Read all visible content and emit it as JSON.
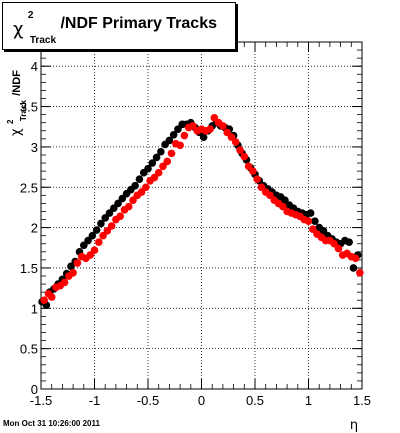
{
  "page": {
    "footer_text": "Mon Oct 31 10:26:00 2011"
  },
  "chart_data": {
    "type": "scatter",
    "title_parts": {
      "chi": "χ",
      "sup": "2",
      "sub": "Track",
      "rest": "/NDF  Primary Tracks"
    },
    "ylabel_parts": {
      "chi": "χ",
      "sup": "2",
      "sub": "Track",
      "rest": "/NDF"
    },
    "xlabel": "η",
    "xlim": [
      -1.5,
      1.5
    ],
    "ylim": [
      0,
      4.3
    ],
    "xticks": [
      -1.5,
      -1,
      -0.5,
      0,
      0.5,
      1,
      1.5
    ],
    "xtick_labels": [
      "-1.5",
      "-1",
      "-0.5",
      "0",
      "0.5",
      "1",
      "1.5"
    ],
    "yticks": [
      0,
      0.5,
      1,
      1.5,
      2,
      2.5,
      3,
      3.5,
      4
    ],
    "ytick_labels": [
      "0",
      "0.5",
      "1",
      "1.5",
      "2",
      "2.5",
      "3",
      "3.5",
      "4"
    ],
    "grid": true,
    "series": [
      {
        "color": "#000000",
        "x": [
          -1.49,
          -1.45,
          -1.42,
          -1.38,
          -1.34,
          -1.3,
          -1.26,
          -1.22,
          -1.18,
          -1.14,
          -1.1,
          -1.06,
          -1.02,
          -0.98,
          -0.94,
          -0.9,
          -0.86,
          -0.82,
          -0.78,
          -0.74,
          -0.7,
          -0.66,
          -0.62,
          -0.58,
          -0.54,
          -0.5,
          -0.46,
          -0.42,
          -0.38,
          -0.34,
          -0.3,
          -0.26,
          -0.22,
          -0.18,
          -0.14,
          -0.1,
          -0.06,
          -0.02,
          0.02,
          0.06,
          0.1,
          0.14,
          0.18,
          0.22,
          0.26,
          0.3,
          0.34,
          0.38,
          0.42,
          0.46,
          0.5,
          0.54,
          0.58,
          0.62,
          0.66,
          0.7,
          0.74,
          0.78,
          0.82,
          0.86,
          0.9,
          0.94,
          0.98,
          1.02,
          1.06,
          1.1,
          1.14,
          1.18,
          1.22,
          1.26,
          1.3,
          1.34,
          1.38,
          1.42,
          1.46
        ],
        "y": [
          1.08,
          1.04,
          1.2,
          1.24,
          1.3,
          1.36,
          1.43,
          1.52,
          1.58,
          1.7,
          1.78,
          1.84,
          1.9,
          1.97,
          2.05,
          2.12,
          2.18,
          2.24,
          2.3,
          2.36,
          2.42,
          2.47,
          2.52,
          2.6,
          2.68,
          2.73,
          2.8,
          2.87,
          2.94,
          3.03,
          3.08,
          3.15,
          3.22,
          3.28,
          3.28,
          3.3,
          3.24,
          3.18,
          3.12,
          3.2,
          3.26,
          3.3,
          3.26,
          3.24,
          3.22,
          3.14,
          3.02,
          2.92,
          2.84,
          2.74,
          2.66,
          2.58,
          2.52,
          2.48,
          2.44,
          2.4,
          2.38,
          2.34,
          2.28,
          2.24,
          2.2,
          2.18,
          2.16,
          2.18,
          2.08,
          2.0,
          1.96,
          1.9,
          1.86,
          1.82,
          1.8,
          1.84,
          1.82,
          1.5,
          1.66
        ]
      },
      {
        "color": "#ff0000",
        "x": [
          -1.47,
          -1.43,
          -1.4,
          -1.36,
          -1.32,
          -1.28,
          -1.24,
          -1.2,
          -1.16,
          -1.12,
          -1.08,
          -1.04,
          -1.0,
          -0.96,
          -0.92,
          -0.88,
          -0.84,
          -0.8,
          -0.76,
          -0.72,
          -0.68,
          -0.64,
          -0.6,
          -0.56,
          -0.52,
          -0.48,
          -0.44,
          -0.4,
          -0.36,
          -0.32,
          -0.28,
          -0.24,
          -0.2,
          -0.16,
          -0.12,
          -0.08,
          -0.04,
          0.0,
          0.04,
          0.08,
          0.12,
          0.16,
          0.2,
          0.24,
          0.28,
          0.32,
          0.36,
          0.4,
          0.44,
          0.48,
          0.52,
          0.56,
          0.6,
          0.64,
          0.68,
          0.72,
          0.76,
          0.8,
          0.84,
          0.88,
          0.92,
          0.96,
          1.0,
          1.04,
          1.08,
          1.12,
          1.16,
          1.2,
          1.24,
          1.28,
          1.32,
          1.36,
          1.4,
          1.44,
          1.48
        ],
        "y": [
          1.1,
          1.18,
          1.14,
          1.26,
          1.28,
          1.32,
          1.4,
          1.44,
          1.56,
          1.64,
          1.62,
          1.66,
          1.72,
          1.82,
          1.9,
          1.96,
          2.02,
          2.1,
          2.14,
          2.22,
          2.26,
          2.34,
          2.4,
          2.44,
          2.5,
          2.58,
          2.62,
          2.68,
          2.76,
          2.82,
          2.92,
          3.04,
          3.02,
          3.14,
          3.24,
          3.26,
          3.2,
          3.22,
          3.2,
          3.22,
          3.36,
          3.3,
          3.26,
          3.18,
          3.12,
          3.06,
          2.96,
          2.88,
          2.76,
          2.7,
          2.6,
          2.5,
          2.44,
          2.4,
          2.34,
          2.3,
          2.26,
          2.2,
          2.18,
          2.16,
          2.14,
          2.1,
          2.08,
          1.98,
          1.92,
          1.88,
          1.84,
          1.84,
          1.8,
          1.74,
          1.66,
          1.68,
          1.64,
          1.62,
          1.44
        ]
      }
    ]
  }
}
